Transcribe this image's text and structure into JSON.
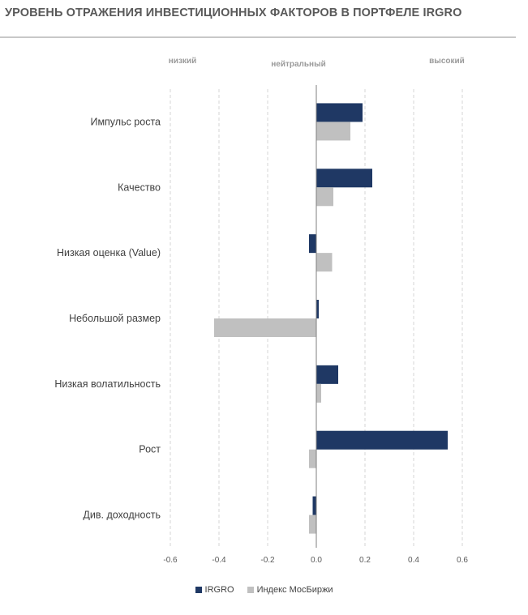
{
  "chart_data": {
    "type": "bar",
    "orientation": "horizontal",
    "title": "УРОВЕНЬ ОТРАЖЕНИЯ ИНВЕСТИЦИОННЫХ ФАКТОРОВ В ПОРТФЕЛЕ IRGRO",
    "level_labels": [
      "низкий",
      "нейтральный",
      "высокий"
    ],
    "categories": [
      "Импульс роста",
      "Качество",
      "Низкая оценка (Value)",
      "Небольшой размер",
      "Низкая волатильность",
      "Рост",
      "Див. доходность"
    ],
    "series": [
      {
        "name": "IRGRO",
        "color": "#1f3864",
        "values": [
          0.19,
          0.23,
          -0.03,
          0.01,
          0.09,
          0.54,
          -0.015
        ]
      },
      {
        "name": "Индекс МосБиржи",
        "color": "#c0c0c0",
        "values": [
          0.14,
          0.07,
          0.065,
          -0.42,
          0.02,
          -0.03,
          -0.03
        ]
      }
    ],
    "xlim": [
      -0.6,
      0.6
    ],
    "xticks": [
      "-0.6",
      "-0.4",
      "-0.2",
      "0.0",
      "0.2",
      "0.4",
      "0.6"
    ],
    "grid": true,
    "legend": "bottom-center"
  }
}
